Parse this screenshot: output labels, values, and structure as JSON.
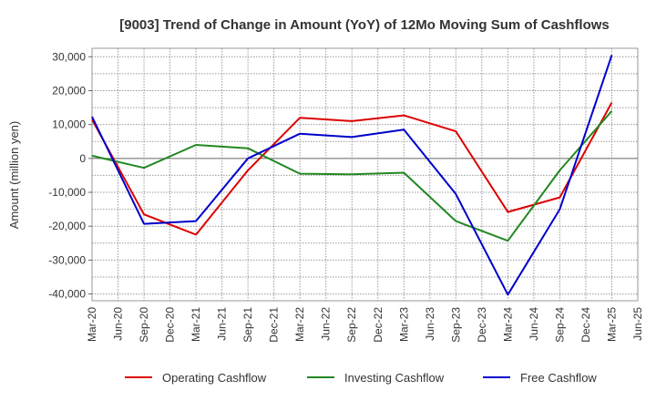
{
  "chart_data": {
    "type": "line",
    "title": "[9003]  Trend of Change in Amount (YoY) of 12Mo Moving Sum of Cashflows",
    "ylabel": "Amount (million yen)",
    "xlabel": "",
    "ylim": [
      -42000,
      32500
    ],
    "yticks": [
      30000,
      20000,
      10000,
      0,
      -10000,
      -20000,
      -30000,
      -40000
    ],
    "ytick_labels": [
      "30,000",
      "20,000",
      "10,000",
      "0",
      "-10,000",
      "-20,000",
      "-30,000",
      "-40,000"
    ],
    "categories": [
      "Mar-20",
      "Jun-20",
      "Sep-20",
      "Dec-20",
      "Mar-21",
      "Jun-21",
      "Sep-21",
      "Dec-21",
      "Mar-22",
      "Jun-22",
      "Sep-22",
      "Dec-22",
      "Mar-23",
      "Jun-23",
      "Sep-23",
      "Dec-23",
      "Mar-24",
      "Jun-24",
      "Sep-24",
      "Dec-24",
      "Mar-25",
      "Jun-25"
    ],
    "grid": true,
    "legend_position": "bottom",
    "series": [
      {
        "name": "Operating Cashflow",
        "color": "#dd0000",
        "x": [
          "Mar-20",
          "Sep-20",
          "Mar-21",
          "Sep-21",
          "Mar-22",
          "Sep-22",
          "Mar-23",
          "Sep-23",
          "Mar-24",
          "Sep-24",
          "Mar-25"
        ],
        "values": [
          11500,
          -16500,
          -22500,
          -3500,
          12000,
          11000,
          12700,
          8000,
          -15800,
          -11500,
          16500
        ]
      },
      {
        "name": "Investing Cashflow",
        "color": "#228822",
        "x": [
          "Mar-20",
          "Sep-20",
          "Mar-21",
          "Sep-21",
          "Mar-22",
          "Sep-22",
          "Mar-23",
          "Sep-23",
          "Mar-24",
          "Sep-24",
          "Mar-25"
        ],
        "values": [
          800,
          -2800,
          4000,
          3000,
          -4500,
          -4700,
          -4200,
          -18500,
          -24300,
          -3500,
          14000
        ]
      },
      {
        "name": "Free Cashflow",
        "color": "#0000cc",
        "x": [
          "Mar-20",
          "Sep-20",
          "Mar-21",
          "Sep-21",
          "Mar-22",
          "Sep-22",
          "Mar-23",
          "Sep-23",
          "Mar-24",
          "Sep-24",
          "Mar-25"
        ],
        "values": [
          12300,
          -19300,
          -18500,
          0,
          7300,
          6300,
          8500,
          -10500,
          -40200,
          -15000,
          30500
        ]
      }
    ]
  }
}
